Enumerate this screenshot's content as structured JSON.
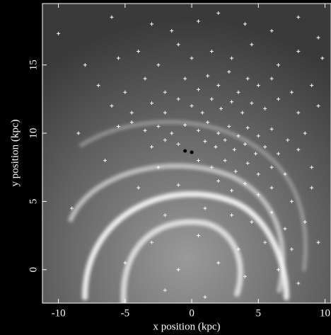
{
  "chart_data": {
    "type": "scatter",
    "xlabel": "x position (kpc)",
    "ylabel": "y position (kpc)",
    "xlim": [
      -11.2,
      10.45
    ],
    "ylim": [
      -2.45,
      19.5
    ],
    "xticks": [
      -10,
      -5,
      0,
      5,
      10
    ],
    "yticks": [
      0,
      5,
      10,
      15
    ],
    "color": "#ffffff",
    "x": [
      -10,
      -6,
      -3,
      -1.5,
      0.5,
      2,
      4,
      6,
      8,
      9.5,
      -8,
      -5.5,
      -4,
      -2.5,
      -1,
      0,
      1.5,
      3,
      4.5,
      6.5,
      8,
      9.8,
      -7,
      -5,
      -3.5,
      -2,
      -0.5,
      0.5,
      1.2,
      2,
      2.8,
      3.5,
      4.2,
      5,
      6,
      7.5,
      9,
      -6,
      -4.5,
      -3,
      -2,
      -1,
      0,
      0.8,
      1.5,
      2.2,
      3,
      3.8,
      4.5,
      5.5,
      6.5,
      8,
      9.5,
      -8.5,
      -5.5,
      -4.5,
      -3.5,
      -2.5,
      -1.5,
      -0.5,
      0.5,
      1.2,
      2,
      2.8,
      3.5,
      4.2,
      5,
      6,
      7.2,
      8.5,
      -3,
      -2,
      -1,
      1,
      1.8,
      2.5,
      3.2,
      4,
      4.8,
      5.5,
      6.5,
      8,
      -6.5,
      -2.5,
      0.5,
      1.5,
      2.5,
      3.3,
      4.2,
      5,
      6,
      7,
      9,
      -4,
      -1,
      2,
      3,
      4,
      5,
      6,
      7.5,
      9,
      -9,
      -2,
      1,
      3,
      4.5,
      6,
      7,
      8.5,
      -3,
      0.5,
      3.5,
      5.5,
      7.5,
      9.5,
      -5,
      -1,
      2,
      4,
      6.5,
      8,
      -2,
      1
    ],
    "y": [
      17.3,
      18.5,
      18,
      17.5,
      18.2,
      18.8,
      18,
      17.5,
      18.5,
      17,
      15,
      15.5,
      16,
      15,
      16.5,
      15.5,
      16,
      15.5,
      16.5,
      15,
      16,
      15.5,
      13.5,
      13,
      14,
      13,
      14,
      13.2,
      14.2,
      13.5,
      14.5,
      13,
      14,
      13.5,
      14,
      13,
      13.5,
      12,
      11.5,
      12.2,
      11.5,
      12.5,
      12,
      11.5,
      12.5,
      11.8,
      12.3,
      11.5,
      12.2,
      11.8,
      12.5,
      11.5,
      12,
      10,
      10.5,
      10.8,
      10.2,
      10.5,
      10,
      10.6,
      10.2,
      10.8,
      10,
      10.5,
      9.8,
      10.4,
      9.8,
      10.3,
      9.5,
      10,
      9,
      9.5,
      9.2,
      9.4,
      9,
      9.5,
      8.8,
      9.2,
      8.5,
      9,
      8.5,
      8.8,
      8,
      7.5,
      8,
      7.5,
      8,
      7.2,
      7.8,
      7,
      7.5,
      7,
      7.5,
      6,
      6.2,
      6.5,
      5.8,
      6.3,
      5.5,
      6,
      5,
      6,
      4.5,
      4,
      4.5,
      4,
      3.5,
      4.2,
      3,
      3.5,
      2,
      2.5,
      1.5,
      2,
      1.5,
      2,
      0.5,
      0,
      0.5,
      -0.5,
      0,
      -1,
      -1.5,
      -2
    ],
    "highlight_points": {
      "x": [
        -0.5,
        0
      ],
      "y": [
        8.7,
        8.6
      ]
    }
  }
}
